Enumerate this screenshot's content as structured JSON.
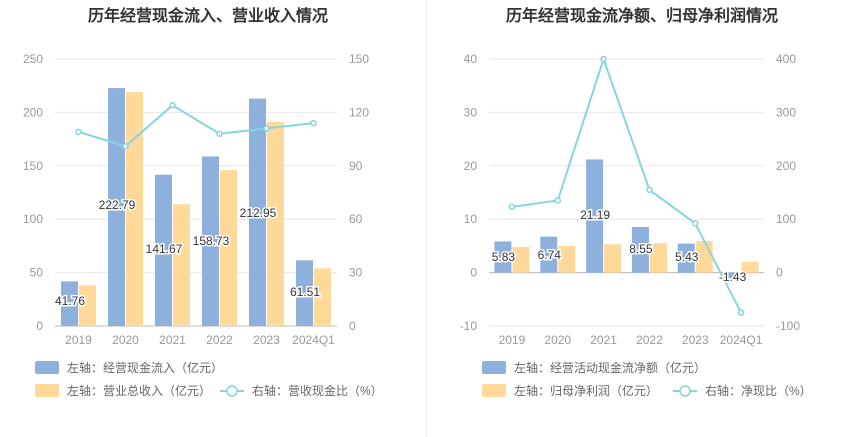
{
  "colors": {
    "bar_blue": "#8eb0dc",
    "bar_orange": "#ffd99a",
    "line_cyan": "#86d5dc",
    "grid": "#e6e6e6",
    "axis_text": "#999999",
    "title_text": "#333333",
    "label_text": "#333333"
  },
  "icons": {
    "legend_bar": "rect-swatch",
    "legend_line": "circle-line-marker"
  },
  "chart_data": [
    {
      "type": "bar",
      "title": "历年经营现金流入、营业收入情况",
      "categories": [
        "2019",
        "2020",
        "2021",
        "2022",
        "2023",
        "2024Q1"
      ],
      "y_left": {
        "ticks": [
          "0",
          "50",
          "100",
          "150",
          "200",
          "250"
        ],
        "range": [
          0,
          250
        ]
      },
      "y_right": {
        "ticks": [
          "0",
          "30",
          "60",
          "90",
          "120",
          "150"
        ],
        "range": [
          0,
          150
        ]
      },
      "series": [
        {
          "name": "左轴：经营现金流入（亿元）",
          "type": "bar",
          "axis": "left",
          "color": "#8eb0dc",
          "values": [
            41.76,
            222.79,
            141.67,
            158.73,
            212.95,
            61.51
          ],
          "labels": [
            "41.76",
            "222.79",
            "141.67",
            "158.73",
            "212.95",
            "61.51"
          ]
        },
        {
          "name": "左轴：营业总收入（亿元）",
          "type": "bar",
          "axis": "left",
          "color": "#ffd99a",
          "values": [
            38,
            219,
            114,
            146,
            191,
            54
          ]
        },
        {
          "name": "右轴：营收现金比（%）",
          "type": "line",
          "axis": "right",
          "color": "#86d5dc",
          "values": [
            109,
            101,
            124,
            108,
            111,
            114
          ]
        }
      ],
      "grid": true,
      "legend_position": "bottom-left"
    },
    {
      "type": "bar",
      "title": "历年经营现金流净额、归母净利润情况",
      "categories": [
        "2019",
        "2020",
        "2021",
        "2022",
        "2023",
        "2024Q1"
      ],
      "y_left": {
        "ticks": [
          "-10",
          "0",
          "10",
          "20",
          "30",
          "40"
        ],
        "range": [
          -10,
          40
        ]
      },
      "y_right": {
        "ticks": [
          "-100",
          "0",
          "100",
          "200",
          "300",
          "400"
        ],
        "range": [
          -100,
          400
        ]
      },
      "series": [
        {
          "name": "左轴：经营活动现金流净额（亿元）",
          "type": "bar",
          "axis": "left",
          "color": "#8eb0dc",
          "values": [
            5.83,
            6.74,
            21.19,
            8.55,
            5.43,
            -1.43
          ],
          "labels": [
            "5.83",
            "6.74",
            "21.19",
            "8.55",
            "5.43",
            "-1.43"
          ]
        },
        {
          "name": "左轴：归母净利润（亿元）",
          "type": "bar",
          "axis": "left",
          "color": "#ffd99a",
          "values": [
            4.8,
            5.0,
            5.3,
            5.5,
            5.9,
            2.0
          ]
        },
        {
          "name": "右轴：净现比（%）",
          "type": "line",
          "axis": "right",
          "color": "#86d5dc",
          "values": [
            123,
            135,
            400,
            155,
            92,
            -75
          ]
        }
      ],
      "grid": true,
      "legend_position": "bottom-left"
    }
  ]
}
